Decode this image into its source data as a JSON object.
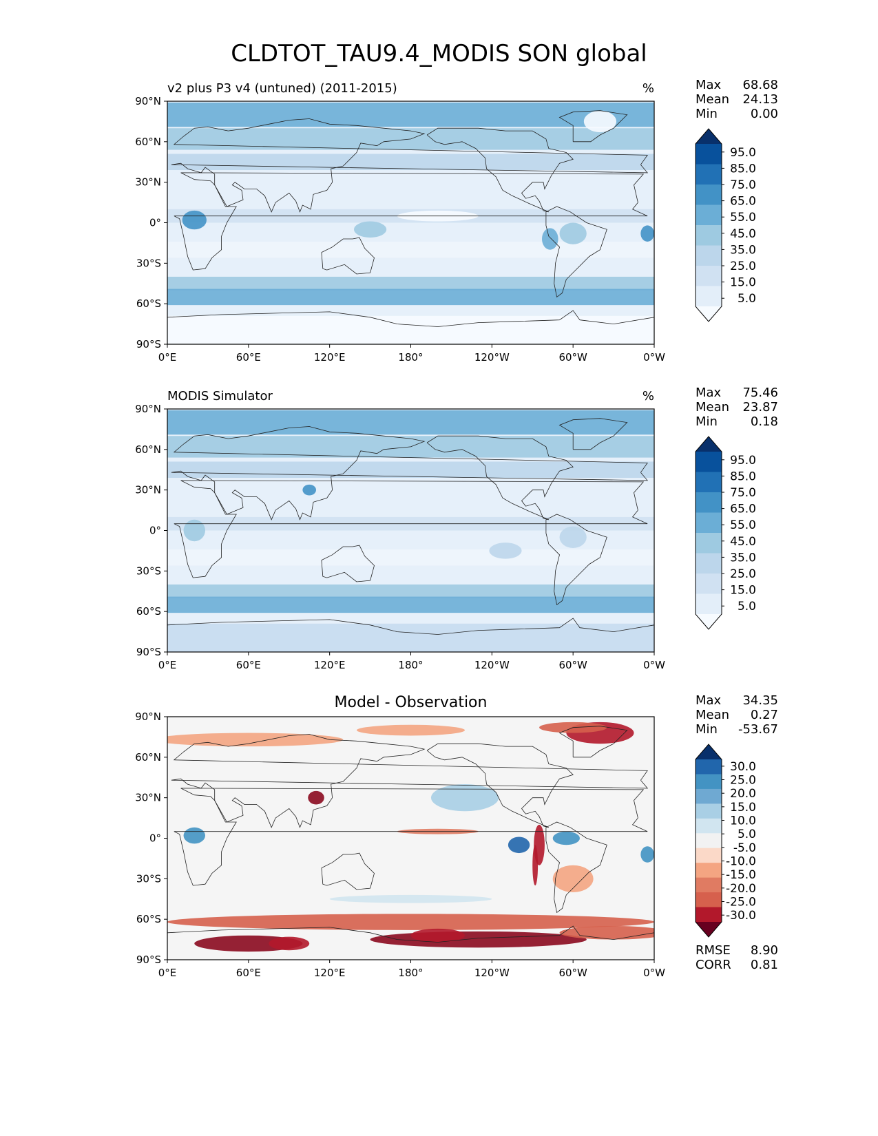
{
  "title": "CLDTOT_TAU9.4_MODIS SON global",
  "chart_data": [
    {
      "type": "heatmap",
      "title": "v2 plus P3 v4 (untuned) (2011-2015)",
      "units": "%",
      "stats": {
        "max_label": "Max",
        "max": "68.68",
        "mean_label": "Mean",
        "mean": "24.13",
        "min_label": "Min",
        "min": "0.00"
      },
      "xticks": [
        "0°E",
        "60°E",
        "120°E",
        "180°",
        "120°W",
        "60°W",
        "0°W"
      ],
      "yticks": [
        "90°N",
        "60°N",
        "30°N",
        "0°",
        "30°S",
        "60°S",
        "90°S"
      ],
      "xlim": [
        0,
        360
      ],
      "ylim": [
        -90,
        90
      ],
      "colorbar": {
        "labels": [
          "95.0",
          "85.0",
          "75.0",
          "65.0",
          "55.0",
          "45.0",
          "35.0",
          "25.0",
          "15.0",
          "5.0"
        ],
        "colors": [
          "#08306b",
          "#08519c",
          "#2171b5",
          "#4292c6",
          "#6baed6",
          "#9ecae1",
          "#bcd6eb",
          "#d0e1f2",
          "#e3eef9",
          "#f7fbff"
        ],
        "extend": "both"
      }
    },
    {
      "type": "heatmap",
      "title": "MODIS Simulator",
      "units": "%",
      "stats": {
        "max_label": "Max",
        "max": "75.46",
        "mean_label": "Mean",
        "mean": "23.87",
        "min_label": "Min",
        "min": "0.18"
      },
      "xticks": [
        "0°E",
        "60°E",
        "120°E",
        "180°",
        "120°W",
        "60°W",
        "0°W"
      ],
      "yticks": [
        "90°N",
        "60°N",
        "30°N",
        "0°",
        "30°S",
        "60°S",
        "90°S"
      ],
      "xlim": [
        0,
        360
      ],
      "ylim": [
        -90,
        90
      ],
      "colorbar": {
        "labels": [
          "95.0",
          "85.0",
          "75.0",
          "65.0",
          "55.0",
          "45.0",
          "35.0",
          "25.0",
          "15.0",
          "5.0"
        ],
        "colors": [
          "#08306b",
          "#08519c",
          "#2171b5",
          "#4292c6",
          "#6baed6",
          "#9ecae1",
          "#bcd6eb",
          "#d0e1f2",
          "#e3eef9",
          "#f7fbff"
        ],
        "extend": "both"
      }
    },
    {
      "type": "heatmap",
      "title": "Model - Observation",
      "units": "",
      "stats": {
        "max_label": "Max",
        "max": "34.35",
        "mean_label": "Mean",
        "mean": "0.27",
        "min_label": "Min",
        "min": "-53.67"
      },
      "extra_stats": {
        "rmse_label": "RMSE",
        "rmse": "8.90",
        "corr_label": "CORR",
        "corr": "0.81"
      },
      "xticks": [
        "0°E",
        "60°E",
        "120°E",
        "180°",
        "120°W",
        "60°W",
        "0°W"
      ],
      "yticks": [
        "90°N",
        "60°N",
        "30°N",
        "0°",
        "30°S",
        "60°S",
        "90°S"
      ],
      "xlim": [
        0,
        360
      ],
      "ylim": [
        -90,
        90
      ],
      "colorbar": {
        "labels": [
          "30.0",
          "25.0",
          "20.0",
          "15.0",
          "10.0",
          "5.0",
          "-5.0",
          "-10.0",
          "-15.0",
          "-20.0",
          "-25.0",
          "-30.0"
        ],
        "colors": [
          "#08306b",
          "#2166ac",
          "#4393c3",
          "#6fa9d2",
          "#a9cfe5",
          "#d1e5f0",
          "#f2f2f2",
          "#fbd9c8",
          "#f4a582",
          "#e07b62",
          "#d6604d",
          "#b2182b",
          "#67001f"
        ],
        "extend": "both"
      }
    }
  ]
}
